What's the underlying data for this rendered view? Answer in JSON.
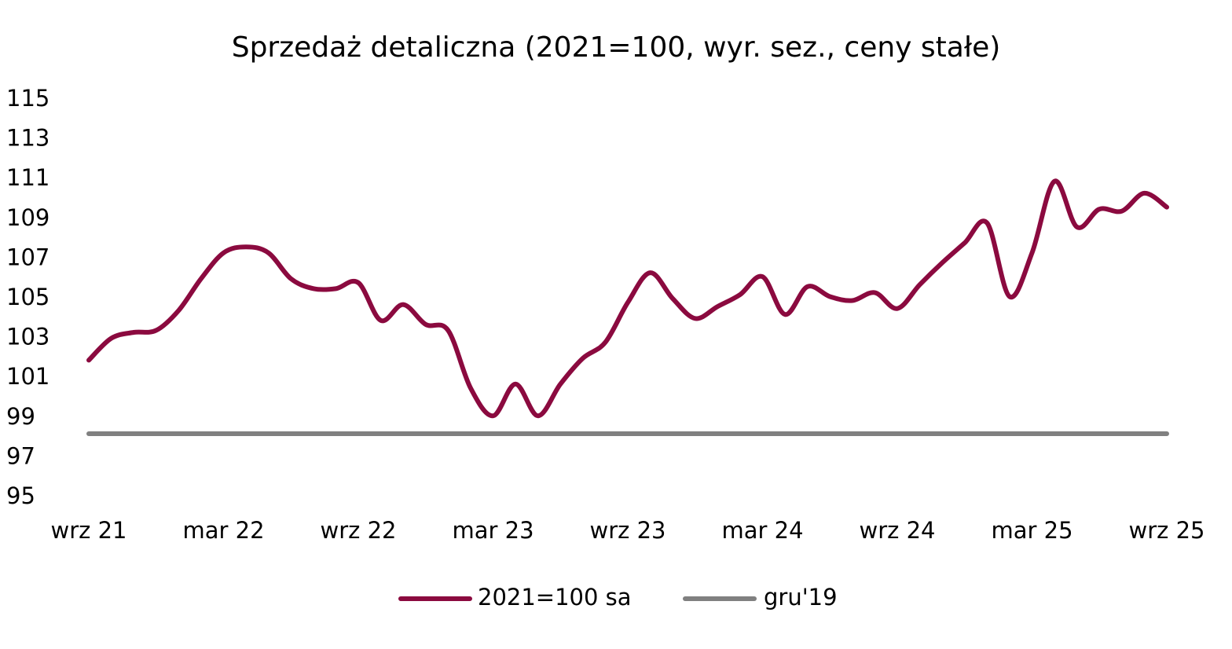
{
  "chart_data": {
    "type": "line",
    "title": "Sprzedaż detaliczna (2021=100, wyr. sez., ceny stałe)",
    "categories": [
      "wrz 21",
      null,
      null,
      null,
      null,
      null,
      "mar 22",
      null,
      null,
      null,
      null,
      null,
      "wrz 22",
      null,
      null,
      null,
      null,
      null,
      "mar 23",
      null,
      null,
      null,
      null,
      null,
      "wrz 23",
      null,
      null,
      null,
      null,
      null,
      "mar 24",
      null,
      null,
      null,
      null,
      null,
      "wrz 24",
      null,
      null,
      null,
      null,
      null,
      "mar 25",
      null,
      null,
      null,
      null,
      null,
      "wrz 25"
    ],
    "series": [
      {
        "name": "2021=100 sa",
        "color": "#8b0a3f",
        "values": [
          101.9,
          103.0,
          103.3,
          103.4,
          104.4,
          106.0,
          107.3,
          107.6,
          107.3,
          106.0,
          105.5,
          105.5,
          105.8,
          103.9,
          104.7,
          103.7,
          103.4,
          100.5,
          99.1,
          100.7,
          99.1,
          100.7,
          102.0,
          102.8,
          104.8,
          106.3,
          105.0,
          104.0,
          104.6,
          105.2,
          106.1,
          104.2,
          105.6,
          105.1,
          104.9,
          105.3,
          104.5,
          105.7,
          106.8,
          107.8,
          108.8,
          105.1,
          107.3,
          110.9,
          108.6,
          109.5,
          109.4,
          110.3,
          109.6
        ]
      },
      {
        "name": "gru'19",
        "color": "#808080",
        "values": [
          98.2,
          98.2,
          98.2,
          98.2,
          98.2,
          98.2,
          98.2,
          98.2,
          98.2,
          98.2,
          98.2,
          98.2,
          98.2,
          98.2,
          98.2,
          98.2,
          98.2,
          98.2,
          98.2,
          98.2,
          98.2,
          98.2,
          98.2,
          98.2,
          98.2,
          98.2,
          98.2,
          98.2,
          98.2,
          98.2,
          98.2,
          98.2,
          98.2,
          98.2,
          98.2,
          98.2,
          98.2,
          98.2,
          98.2,
          98.2,
          98.2,
          98.2,
          98.2,
          98.2,
          98.2,
          98.2,
          98.2,
          98.2,
          98.2
        ]
      }
    ],
    "ylim": [
      95,
      115
    ],
    "yticks": [
      95,
      97,
      99,
      101,
      103,
      105,
      107,
      109,
      111,
      113,
      115
    ],
    "grid": false,
    "legend": "bottom"
  }
}
